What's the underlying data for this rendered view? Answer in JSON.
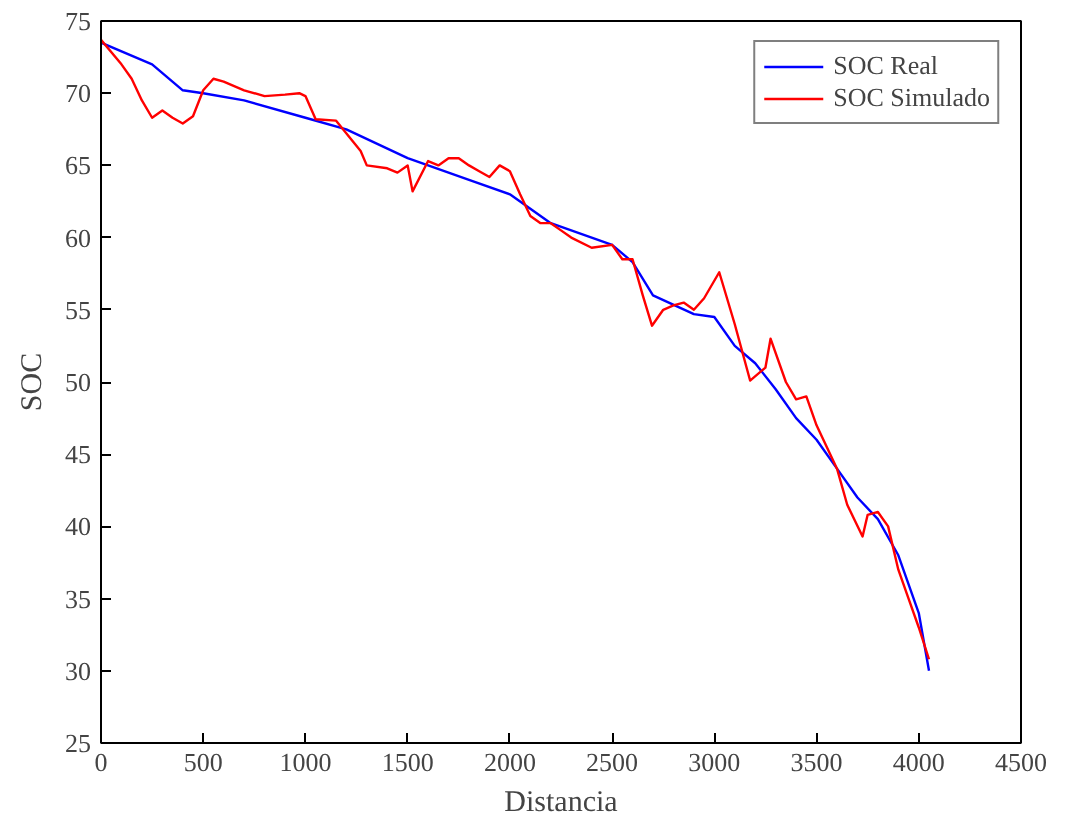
{
  "chart_data": {
    "type": "line",
    "xlabel": "Distancia",
    "ylabel": "SOC",
    "xlim": [
      0,
      4500
    ],
    "ylim": [
      25,
      75
    ],
    "xticks": [
      0,
      500,
      1000,
      1500,
      2000,
      2500,
      3000,
      3500,
      4000,
      4500
    ],
    "yticks": [
      25,
      30,
      35,
      40,
      45,
      50,
      55,
      60,
      65,
      70,
      75
    ],
    "grid": false,
    "legend": "top right",
    "line_style": "solid",
    "marker": "none",
    "series": [
      {
        "name": "SOC Real",
        "color": "#0000ff",
        "x": [
          0,
          250,
          400,
          500,
          700,
          1000,
          1200,
          1500,
          1800,
          2000,
          2200,
          2500,
          2600,
          2700,
          2900,
          3000,
          3100,
          3200,
          3300,
          3400,
          3500,
          3600,
          3700,
          3800,
          3900,
          4000,
          4050
        ],
        "values": [
          73.5,
          72,
          70.2,
          70,
          69.5,
          68.3,
          67.5,
          65.5,
          64,
          63,
          61,
          59.5,
          58.3,
          56,
          54.7,
          54.5,
          52.5,
          51.3,
          49.5,
          47.5,
          46,
          44,
          42,
          40.5,
          38,
          34,
          30
        ]
      },
      {
        "name": "SOC Simulado",
        "color": "#ff0000",
        "x": [
          0,
          100,
          150,
          200,
          250,
          300,
          350,
          400,
          450,
          500,
          550,
          600,
          700,
          800,
          900,
          970,
          1000,
          1050,
          1150,
          1270,
          1300,
          1400,
          1450,
          1500,
          1524,
          1600,
          1650,
          1700,
          1750,
          1800,
          1850,
          1900,
          1950,
          2000,
          2050,
          2100,
          2150,
          2200,
          2250,
          2300,
          2400,
          2500,
          2550,
          2600,
          2650,
          2695,
          2750,
          2800,
          2850,
          2900,
          2950,
          3024,
          3100,
          3175,
          3250,
          3275,
          3350,
          3400,
          3450,
          3500,
          3550,
          3600,
          3650,
          3725,
          3750,
          3800,
          3850,
          3900,
          3950,
          4000,
          4050
        ],
        "values": [
          73.7,
          72,
          71,
          69.5,
          68.3,
          68.8,
          68.3,
          67.9,
          68.4,
          70.2,
          71,
          70.8,
          70.2,
          69.8,
          69.9,
          70,
          69.8,
          68.2,
          68.1,
          66,
          65,
          64.8,
          64.5,
          65,
          63.2,
          65.3,
          65,
          65.5,
          65.5,
          65,
          64.6,
          64.2,
          65,
          64.6,
          63,
          61.5,
          61,
          61,
          60.5,
          60,
          59.3,
          59.5,
          58.5,
          58.5,
          56,
          53.9,
          55,
          55.3,
          55.5,
          55,
          55.8,
          57.6,
          54,
          50.1,
          51,
          53,
          50,
          48.8,
          49,
          47,
          45.5,
          44,
          41.5,
          39.3,
          40.8,
          41,
          40,
          37,
          35,
          33,
          30.8
        ]
      }
    ]
  }
}
